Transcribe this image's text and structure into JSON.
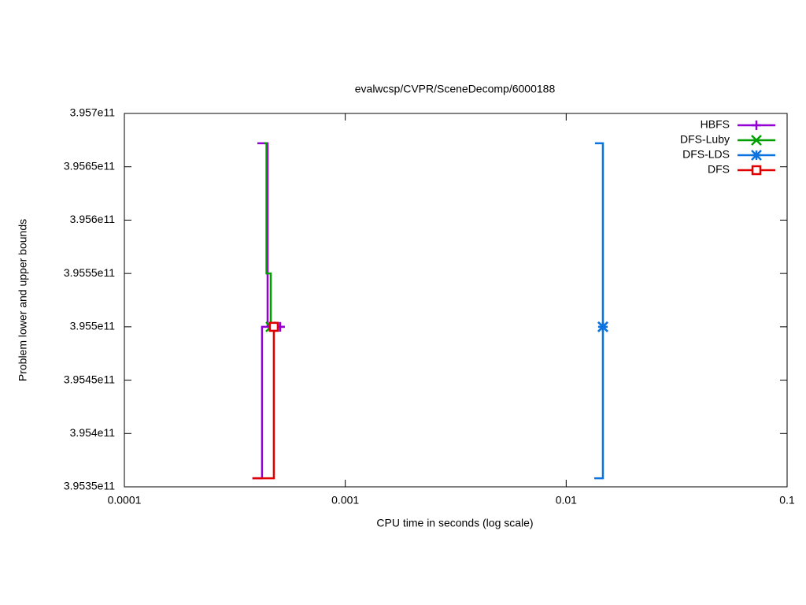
{
  "chart_data": {
    "type": "step",
    "title": "evalwcsp/CVPR/SceneDecomp/6000188",
    "xlabel": "CPU time in seconds (log scale)",
    "ylabel": "Problem lower and upper bounds",
    "xlog": true,
    "xlim": [
      0.0001,
      0.1
    ],
    "xticks": [
      0.0001,
      0.001,
      0.01,
      0.1
    ],
    "ylim": [
      395350000000,
      395700000000
    ],
    "yticks": [
      {
        "value": 395350000000,
        "label": "3.9535e11"
      },
      {
        "value": 395400000000,
        "label": "3.954e11"
      },
      {
        "value": 395450000000,
        "label": "3.9545e11"
      },
      {
        "value": 395500000000,
        "label": "3.955e11"
      },
      {
        "value": 395550000000,
        "label": "3.9555e11"
      },
      {
        "value": 395600000000,
        "label": "3.956e11"
      },
      {
        "value": 395650000000,
        "label": "3.9565e11"
      },
      {
        "value": 395700000000,
        "label": "3.957e11"
      }
    ],
    "legend": "top-right",
    "series": [
      {
        "name": "HBFS",
        "color": "#9400d3",
        "marker": "plus",
        "x": [
          0.0004,
          0.000445,
          0.000507,
          null,
          0.00038,
          0.00042,
          0.000507
        ],
        "y": [
          395672000000,
          395500000000,
          395500000000,
          null,
          395358000000,
          395500000000,
          395500000000
        ]
      },
      {
        "name": "DFS-Luby",
        "color": "#009e00",
        "marker": "cross",
        "x": [
          0.00043,
          0.00044,
          0.00046
        ],
        "y": [
          395672000000,
          395550000000,
          395500000000
        ]
      },
      {
        "name": "DFS-LDS",
        "color": "#0a73e0",
        "marker": "asterisk",
        "x": [
          0.0135,
          0.01466,
          null,
          0.0134,
          0.01466
        ],
        "y": [
          395672000000,
          395500000000,
          null,
          395358000000,
          395500000000
        ]
      },
      {
        "name": "DFS",
        "color": "#e00000",
        "marker": "square",
        "x": [
          0.00045,
          0.000475,
          null,
          0.00038,
          0.000475
        ],
        "y": [
          395500000000,
          395500000000,
          null,
          395358000000,
          395500000000
        ]
      }
    ]
  }
}
